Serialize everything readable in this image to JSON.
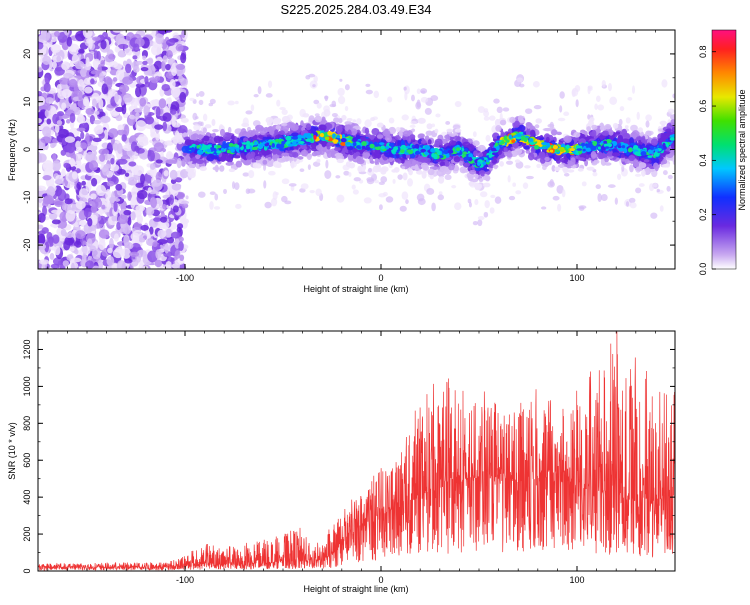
{
  "title": "S225.2025.284.03.49.E34",
  "chart_data": [
    {
      "type": "heatmap",
      "xlabel": "Height of straight line (km)",
      "ylabel": "Frequency (Hz)",
      "xlim": [
        -175,
        150
      ],
      "ylim": [
        -25,
        25
      ],
      "x_ticks": [
        -100,
        0,
        100
      ],
      "y_ticks": [
        -20,
        -10,
        0,
        10,
        20
      ],
      "colorbar": {
        "label": "Normalized spectral amplitude",
        "range": [
          0,
          0.88
        ],
        "ticks": [
          0.0,
          0.2,
          0.4,
          0.6,
          0.8
        ]
      },
      "ridge": {
        "x": [
          -100,
          -80,
          -60,
          -40,
          -30,
          -20,
          -10,
          0,
          10,
          20,
          30,
          40,
          50,
          55,
          60,
          70,
          80,
          90,
          100,
          110,
          120,
          130,
          140,
          150
        ],
        "y": [
          0,
          0,
          1,
          2,
          3,
          2,
          1,
          0.5,
          0,
          0,
          -1,
          0,
          -3,
          -2,
          1,
          3,
          1,
          0,
          0,
          1,
          1,
          0,
          -1,
          3
        ]
      }
    },
    {
      "type": "line",
      "xlabel": "Height of straight line (km)",
      "ylabel": "SNR (10 * v/v)",
      "xlim": [
        -175,
        150
      ],
      "ylim": [
        0,
        1300
      ],
      "x_ticks": [
        -100,
        0,
        100
      ],
      "y_ticks": [
        0,
        200,
        400,
        600,
        800,
        1000,
        1200
      ],
      "color": "#ee3333",
      "envelope": {
        "x": [
          -175,
          -110,
          -100,
          -90,
          -80,
          -70,
          -60,
          -50,
          -40,
          -35,
          -30,
          -25,
          -20,
          -10,
          0,
          10,
          20,
          30,
          40,
          50,
          60,
          70,
          80,
          90,
          100,
          110,
          120,
          130,
          140,
          150
        ],
        "peak": [
          40,
          50,
          90,
          150,
          130,
          160,
          170,
          200,
          250,
          160,
          150,
          260,
          330,
          450,
          560,
          650,
          950,
          1050,
          1100,
          1000,
          900,
          950,
          1000,
          900,
          1050,
          1100,
          1300,
          1200,
          1000,
          1000
        ],
        "base": [
          20,
          20,
          30,
          40,
          40,
          40,
          40,
          50,
          60,
          50,
          60,
          90,
          150,
          250,
          300,
          350,
          400,
          450,
          480,
          500,
          500,
          480,
          500,
          480,
          450,
          430,
          400,
          380,
          350,
          400
        ]
      }
    }
  ]
}
